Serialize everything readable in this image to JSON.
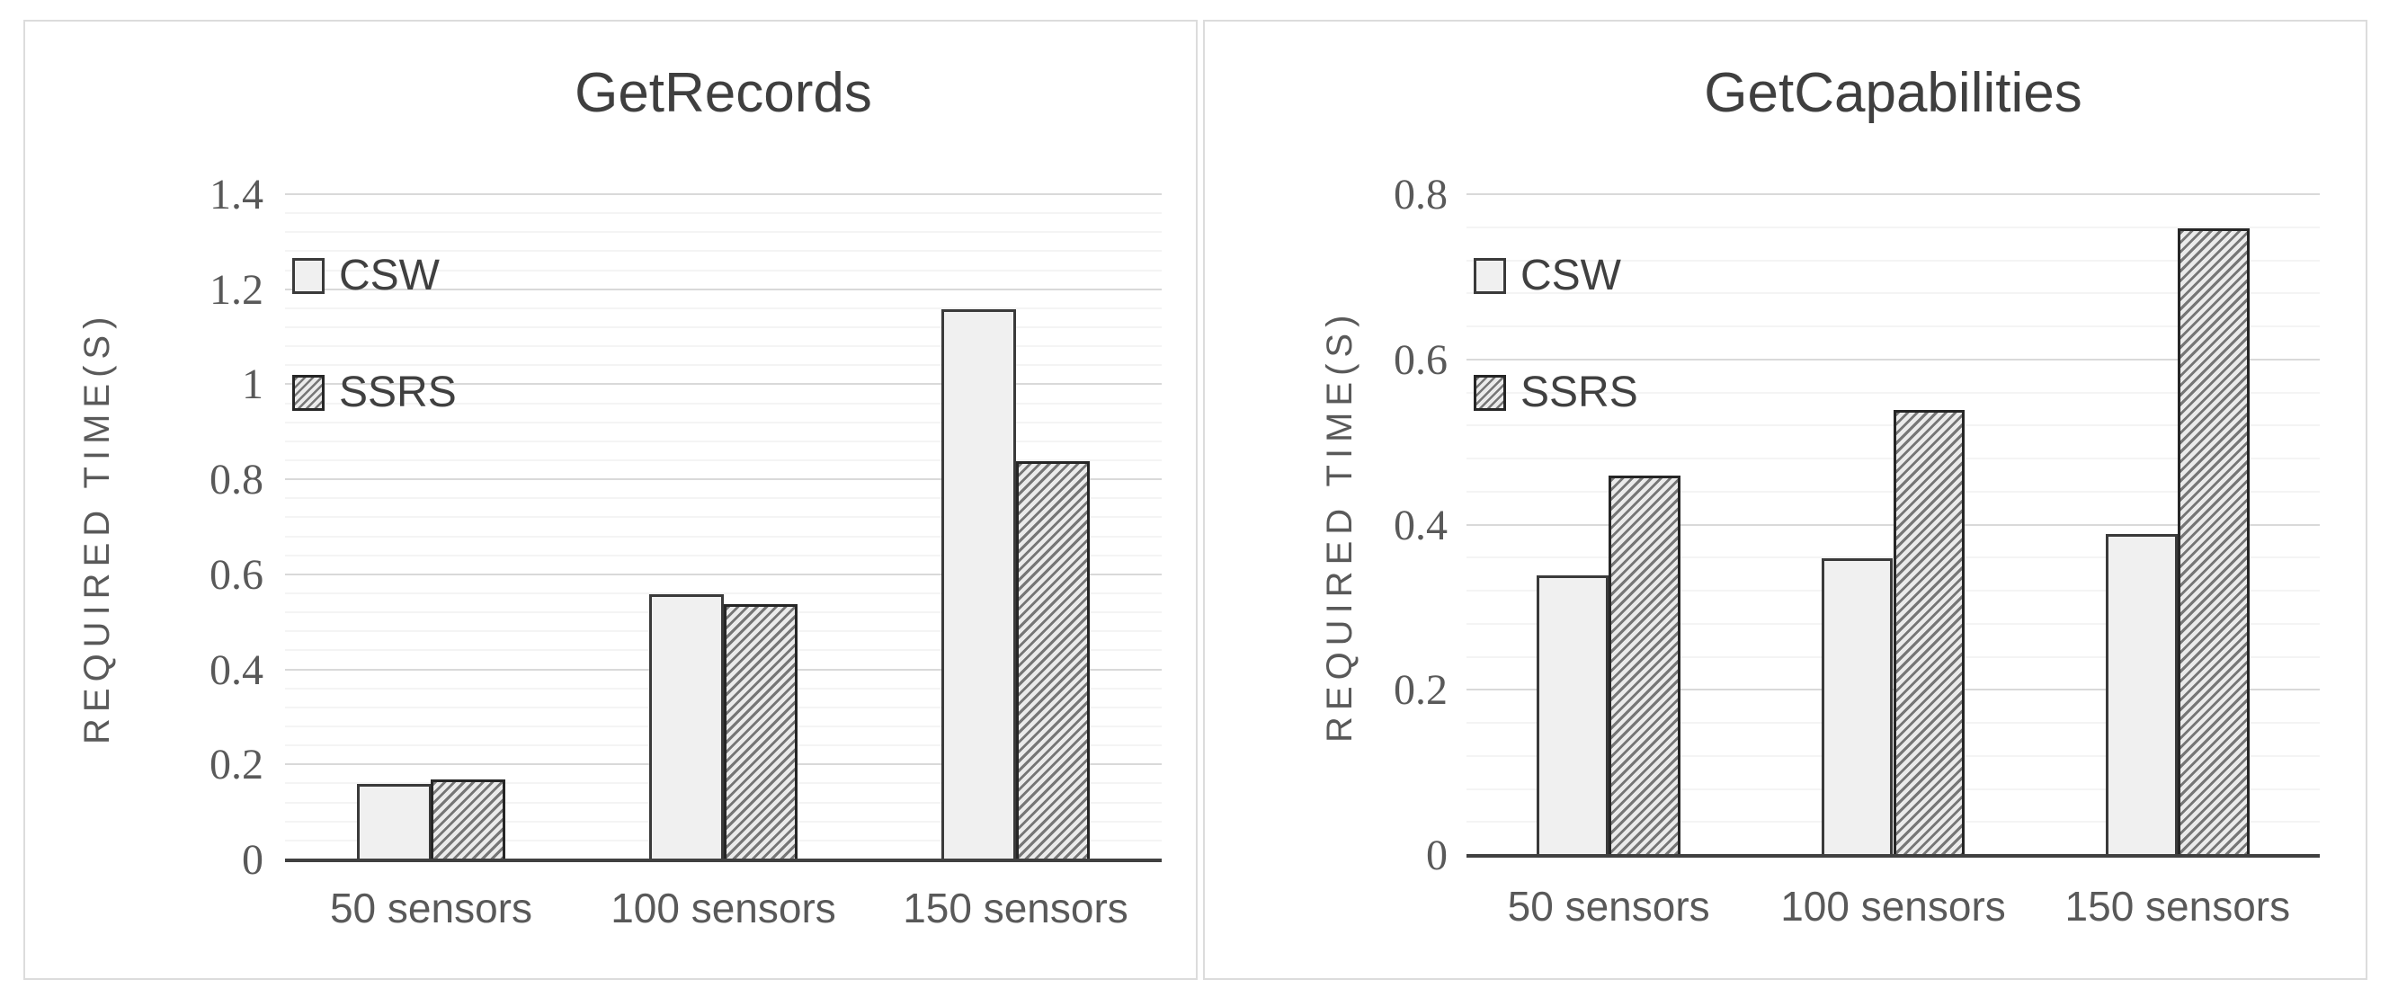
{
  "page": {
    "background": "#ffffff"
  },
  "colors": {
    "panel_border": "#dcdcdc",
    "axis_line": "#404040",
    "grid_major": "#d9d9d9",
    "grid_minor": "#f4f4f4",
    "text": "#595959",
    "title_text": "#3f3f3f",
    "csw_fill": "#f0f0f0",
    "bar_border": "#3a3a3a",
    "hatch_dark": "#767676",
    "hatch_light": "#ebebeb"
  },
  "chart_data": [
    {
      "type": "bar",
      "title": "GetRecords",
      "ylabel": "REQUIRED TIME(S)",
      "xlabel": "",
      "categories": [
        "50 sensors",
        "100 sensors",
        "150 sensors"
      ],
      "series": [
        {
          "name": "CSW",
          "style": "solid-light",
          "values": [
            0.16,
            0.56,
            1.16
          ]
        },
        {
          "name": "SSRS",
          "style": "hatched-diagonal",
          "values": [
            0.17,
            0.54,
            0.84
          ]
        }
      ],
      "ylim": [
        0,
        1.4
      ],
      "yticks": [
        0,
        0.2,
        0.4,
        0.6,
        0.8,
        1,
        1.2,
        1.4
      ],
      "y_minor_interval": 0.04,
      "grid": "major-and-minor-horizontal",
      "legend_position": "inside-top-left",
      "bar_width_pct": 8.5
    },
    {
      "type": "bar",
      "title": "GetCapabilities",
      "ylabel": "REQUIRED TIME(S)",
      "xlabel": "",
      "categories": [
        "50 sensors",
        "100 sensors",
        "150 sensors"
      ],
      "series": [
        {
          "name": "CSW",
          "style": "solid-light",
          "values": [
            0.34,
            0.36,
            0.39
          ]
        },
        {
          "name": "SSRS",
          "style": "hatched-diagonal",
          "values": [
            0.46,
            0.54,
            0.76
          ]
        }
      ],
      "ylim": [
        0,
        0.8
      ],
      "yticks": [
        0,
        0.2,
        0.4,
        0.6,
        0.8
      ],
      "y_minor_interval": 0.04,
      "grid": "major-and-minor-horizontal",
      "legend_position": "inside-top-left",
      "bar_width_pct": 8.4
    }
  ]
}
